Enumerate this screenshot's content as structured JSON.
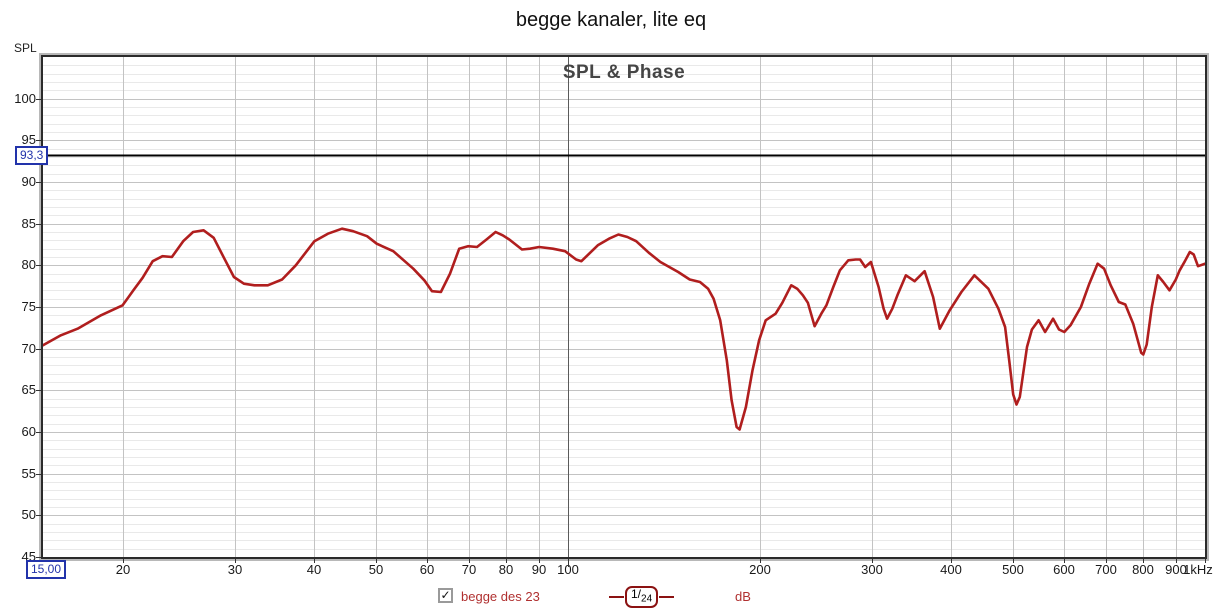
{
  "page": {
    "title": "begge kanaler, lite eq"
  },
  "chart": {
    "y_axis_title": "SPL",
    "heading": "SPL & Phase",
    "marker_readout": "93,3",
    "x_start_readout": "15,00",
    "legend": {
      "checkbox_checked": true,
      "checkbox_glyph": "✓",
      "series_label": "begge des 23",
      "smoothing_prefix": "1/",
      "smoothing_sub": "24",
      "unit_label": "dB"
    },
    "colors": {
      "curve": "#b01e1e",
      "legend_text": "#b03030",
      "readout": "#2233aa",
      "grid_minor": "#e9e9e9",
      "grid_major": "#c3c3c3",
      "grid_100hz": "#5a5a5a",
      "marker_line": "#000000",
      "heading_text": "#454545"
    }
  },
  "chart_data": {
    "type": "line",
    "title": "SPL & Phase",
    "page_title": "begge kanaler, lite eq",
    "x_scale": "log",
    "x_range_hz": [
      15,
      1000
    ],
    "y_range_db": [
      45,
      105
    ],
    "y_major_step_db": 5,
    "y_minor_step_db": 1,
    "grid": true,
    "marker_line_db": 93.3,
    "x_start_hz": 15.0,
    "y_tick_labels": [
      100,
      95,
      90,
      85,
      80,
      75,
      70,
      65,
      60,
      55,
      50,
      45
    ],
    "x_ticks": [
      {
        "f": 20,
        "label": "20"
      },
      {
        "f": 30,
        "label": "30"
      },
      {
        "f": 40,
        "label": "40"
      },
      {
        "f": 50,
        "label": "50"
      },
      {
        "f": 60,
        "label": "60"
      },
      {
        "f": 70,
        "label": "70"
      },
      {
        "f": 80,
        "label": "80"
      },
      {
        "f": 90,
        "label": "90"
      },
      {
        "f": 100,
        "label": "100"
      },
      {
        "f": 200,
        "label": "200"
      },
      {
        "f": 300,
        "label": "300"
      },
      {
        "f": 400,
        "label": "400"
      },
      {
        "f": 500,
        "label": "500"
      },
      {
        "f": 600,
        "label": "600"
      },
      {
        "f": 700,
        "label": "700"
      },
      {
        "f": 800,
        "label": "800"
      },
      {
        "f": 900,
        "label": "900"
      },
      {
        "f": 1000,
        "label": "1kHz"
      }
    ],
    "series": [
      {
        "name": "begge des 23",
        "color": "#b01e1e",
        "smoothing": "1/24",
        "unit": "dB",
        "points": [
          [
            15,
            70.4
          ],
          [
            16,
            71.6
          ],
          [
            17,
            72.4
          ],
          [
            18.5,
            74.0
          ],
          [
            20,
            75.2
          ],
          [
            20.8,
            77.0
          ],
          [
            21.5,
            78.5
          ],
          [
            22.3,
            80.5
          ],
          [
            23.1,
            81.1
          ],
          [
            23.9,
            81.0
          ],
          [
            24.9,
            82.9
          ],
          [
            25.8,
            84.0
          ],
          [
            26.8,
            84.2
          ],
          [
            27.8,
            83.3
          ],
          [
            28.9,
            80.8
          ],
          [
            29.9,
            78.6
          ],
          [
            31,
            77.8
          ],
          [
            32.2,
            77.6
          ],
          [
            33.8,
            77.6
          ],
          [
            35.6,
            78.3
          ],
          [
            37.4,
            80.0
          ],
          [
            40,
            82.9
          ],
          [
            42,
            83.8
          ],
          [
            44.2,
            84.4
          ],
          [
            46,
            84.1
          ],
          [
            48.4,
            83.5
          ],
          [
            50.1,
            82.6
          ],
          [
            53.2,
            81.7
          ],
          [
            57.2,
            79.6
          ],
          [
            59.5,
            78.2
          ],
          [
            61.2,
            76.9
          ],
          [
            63.2,
            76.8
          ],
          [
            65.3,
            79.0
          ],
          [
            67.5,
            82.0
          ],
          [
            69.7,
            82.3
          ],
          [
            72,
            82.2
          ],
          [
            74.5,
            83.1
          ],
          [
            77,
            84.0
          ],
          [
            79,
            83.6
          ],
          [
            80.9,
            83.1
          ],
          [
            84.7,
            81.9
          ],
          [
            87.2,
            82.0
          ],
          [
            90.1,
            82.2
          ],
          [
            94.7,
            82.0
          ],
          [
            99,
            81.7
          ],
          [
            103,
            80.7
          ],
          [
            105,
            80.5
          ],
          [
            111.4,
            82.4
          ],
          [
            116,
            83.2
          ],
          [
            120,
            83.7
          ],
          [
            124,
            83.4
          ],
          [
            128,
            82.9
          ],
          [
            134,
            81.5
          ],
          [
            139.7,
            80.4
          ],
          [
            149,
            79.2
          ],
          [
            155.3,
            78.3
          ],
          [
            161.2,
            78.0
          ],
          [
            166,
            77.2
          ],
          [
            169.3,
            76.0
          ],
          [
            173.4,
            73.4
          ],
          [
            177.6,
            68.6
          ],
          [
            180.7,
            63.8
          ],
          [
            184,
            60.6
          ],
          [
            186,
            60.3
          ],
          [
            190.3,
            63.0
          ],
          [
            194.9,
            67.4
          ],
          [
            199.6,
            71.0
          ],
          [
            204.4,
            73.4
          ],
          [
            211.8,
            74.2
          ],
          [
            217,
            75.5
          ],
          [
            224.1,
            77.6
          ],
          [
            229,
            77.2
          ],
          [
            233.8,
            76.4
          ],
          [
            238.1,
            75.5
          ],
          [
            243.9,
            72.7
          ],
          [
            249.9,
            74.2
          ],
          [
            254.5,
            75.2
          ],
          [
            261,
            77.4
          ],
          [
            267.3,
            79.4
          ],
          [
            275.5,
            80.6
          ],
          [
            283,
            80.7
          ],
          [
            287.5,
            80.7
          ],
          [
            292.8,
            79.8
          ],
          [
            298.9,
            80.4
          ],
          [
            307.4,
            77.4
          ],
          [
            313,
            74.8
          ],
          [
            317,
            73.6
          ],
          [
            323,
            74.8
          ],
          [
            329,
            76.4
          ],
          [
            339.3,
            78.8
          ],
          [
            350.1,
            78.1
          ],
          [
            363,
            79.3
          ],
          [
            374.3,
            76.2
          ],
          [
            383.5,
            72.4
          ],
          [
            397.5,
            74.6
          ],
          [
            414.6,
            76.8
          ],
          [
            434.6,
            78.8
          ],
          [
            456.9,
            77.2
          ],
          [
            474,
            74.8
          ],
          [
            485.6,
            72.6
          ],
          [
            493,
            68.5
          ],
          [
            500,
            64.5
          ],
          [
            506,
            63.3
          ],
          [
            512,
            64.2
          ],
          [
            525.6,
            70.2
          ],
          [
            535,
            72.3
          ],
          [
            548,
            73.4
          ],
          [
            561,
            72.0
          ],
          [
            577.5,
            73.6
          ],
          [
            590,
            72.3
          ],
          [
            601.3,
            72.0
          ],
          [
            615,
            72.8
          ],
          [
            638.5,
            75.0
          ],
          [
            658.2,
            77.8
          ],
          [
            678.3,
            80.2
          ],
          [
            694.5,
            79.6
          ],
          [
            711.2,
            77.6
          ],
          [
            732.3,
            75.6
          ],
          [
            749.6,
            75.3
          ],
          [
            771.5,
            73.0
          ],
          [
            794.2,
            69.5
          ],
          [
            800,
            69.3
          ],
          [
            810,
            70.5
          ],
          [
            825,
            75.0
          ],
          [
            843.2,
            78.8
          ],
          [
            860,
            78.0
          ],
          [
            879.7,
            77.0
          ],
          [
            900,
            78.3
          ],
          [
            912.6,
            79.4
          ],
          [
            930,
            80.5
          ],
          [
            946.6,
            81.6
          ],
          [
            960,
            81.3
          ],
          [
            975,
            79.9
          ],
          [
            1000,
            80.2
          ]
        ]
      }
    ]
  }
}
